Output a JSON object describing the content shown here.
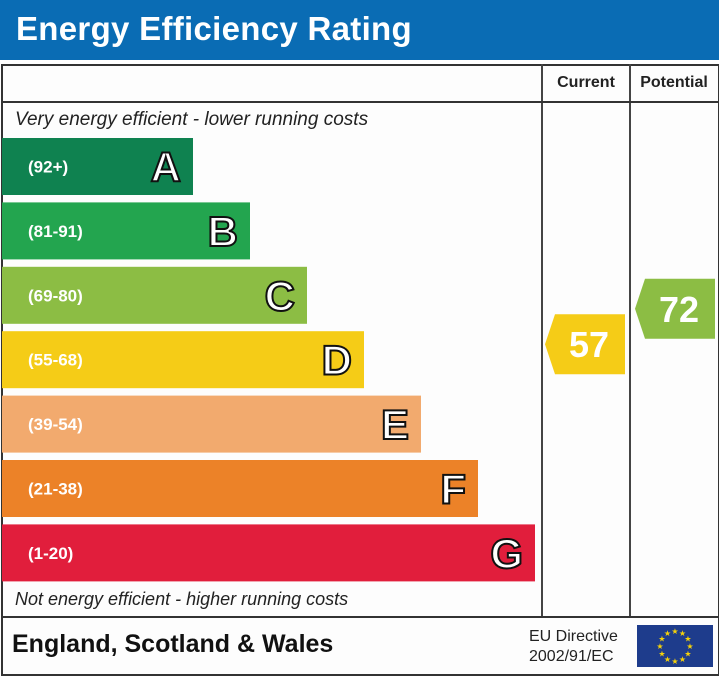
{
  "header": {
    "title": "Energy Efficiency Rating"
  },
  "columns": {
    "current": "Current",
    "potential": "Potential"
  },
  "notes": {
    "top": "Very energy efficient - lower running costs",
    "bottom": "Not energy efficient - higher running costs"
  },
  "footer": {
    "region": "England, Scotland & Wales",
    "directive_line1": "EU Directive",
    "directive_line2": "2002/91/EC",
    "flag_icon": "eu-flag-icon"
  },
  "chart_data": {
    "type": "bar",
    "categories": [
      "A",
      "B",
      "C",
      "D",
      "E",
      "F",
      "G"
    ],
    "ranges": [
      "(92+)",
      "(81-91)",
      "(69-80)",
      "(55-68)",
      "(39-54)",
      "(21-38)",
      "(1-20)"
    ],
    "colors": [
      "#0f8250",
      "#23a54f",
      "#8cbd44",
      "#f5cc17",
      "#f2aa6e",
      "#ec8228",
      "#e11e3c"
    ],
    "current": {
      "value": 57,
      "band": "D",
      "color": "#f5cc17"
    },
    "potential": {
      "value": 72,
      "band": "C",
      "color": "#8cbd44"
    }
  }
}
